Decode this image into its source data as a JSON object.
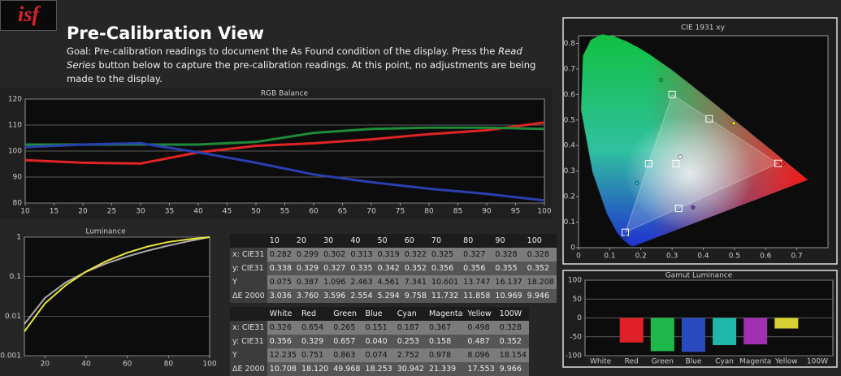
{
  "header": {
    "logo": "isf",
    "title": "Pre-Calibration View",
    "goal": [
      "Goal: Pre-calibration readings to document the As Found condition of the display. Press the ",
      "Read Series",
      " button below to capture the pre-calibration readings. At this point, no adjustments are being made to the display."
    ]
  },
  "chart_data": [
    {
      "type": "line",
      "title": "RGB Balance",
      "x": [
        10,
        20,
        30,
        40,
        50,
        60,
        70,
        80,
        90,
        100
      ],
      "xlim": [
        10,
        100
      ],
      "xticks": [
        10,
        15,
        20,
        25,
        30,
        35,
        40,
        45,
        50,
        55,
        60,
        65,
        70,
        75,
        80,
        85,
        90,
        95,
        100
      ],
      "ylim": [
        80,
        120
      ],
      "yticks": [
        80,
        90,
        100,
        110,
        120
      ],
      "grid": true,
      "log_y": false,
      "series": [
        {
          "color": "#e02424",
          "values": [
            96.5,
            95.5,
            95.2,
            99.5,
            102,
            103,
            104.5,
            106.5,
            108,
            111
          ]
        },
        {
          "color": "#1f8a3a",
          "values": [
            102.5,
            102.5,
            102.5,
            102.5,
            103.5,
            107,
            108.5,
            109,
            109,
            108.5
          ]
        },
        {
          "color": "#2a3fb0",
          "values": [
            101.5,
            102.5,
            103,
            99.5,
            95.5,
            91,
            88,
            85.5,
            83.5,
            81
          ]
        }
      ]
    },
    {
      "type": "line",
      "title": "Luminance",
      "x": [
        10,
        20,
        30,
        40,
        50,
        60,
        70,
        80,
        90,
        100
      ],
      "xlim": [
        10,
        100
      ],
      "xticks": [
        20,
        40,
        60,
        80,
        100
      ],
      "ylim": [
        0.001,
        1
      ],
      "yticks": [
        0.001,
        0.01,
        0.1,
        1
      ],
      "grid": true,
      "log_y": true,
      "series": [
        {
          "color": "#aaaaaa",
          "values": [
            0.0063,
            0.029,
            0.071,
            0.133,
            0.218,
            0.325,
            0.456,
            0.612,
            0.793,
            1
          ]
        },
        {
          "color": "#e8e83a",
          "values": [
            0.0041,
            0.021,
            0.06,
            0.135,
            0.25,
            0.403,
            0.58,
            0.755,
            0.886,
            1
          ]
        }
      ]
    },
    {
      "type": "scatter",
      "title": "CIE 1931 xy",
      "xlim": [
        0,
        0.8
      ],
      "xticks": [
        0,
        0.1,
        0.2,
        0.3,
        0.4,
        0.5,
        0.6,
        0.7
      ],
      "ylim": [
        0,
        0.83
      ],
      "yticks": [
        0,
        0.1,
        0.2,
        0.3,
        0.4,
        0.5,
        0.6,
        0.7,
        0.8
      ],
      "grid": false,
      "series": [
        {
          "marker": "square",
          "color": "#ffffff",
          "x": [
            0.64,
            0.3,
            0.15,
            0.3127,
            0.225,
            0.321,
            0.419
          ],
          "y": [
            0.33,
            0.6,
            0.06,
            0.329,
            0.329,
            0.154,
            0.505
          ]
        },
        {
          "marker": "circle",
          "colors": [
            "#ffffff",
            "#ff3030",
            "#20b040",
            "#2040c0",
            "#20c0c0",
            "#8030a0",
            "#e0e020"
          ],
          "x": [
            0.326,
            0.654,
            0.265,
            0.151,
            0.187,
            0.367,
            0.498
          ],
          "y": [
            0.356,
            0.329,
            0.657,
            0.04,
            0.253,
            0.158,
            0.487
          ]
        }
      ]
    },
    {
      "type": "bar",
      "title": "Gamut Luminance",
      "categories": [
        "White",
        "Red",
        "Green",
        "Blue",
        "Cyan",
        "Magenta",
        "Yellow",
        "100W"
      ],
      "values": [
        0,
        -65,
        -88,
        -90,
        -72,
        -70,
        -28,
        0
      ],
      "colors": [
        "#ffffff",
        "#e02028",
        "#1fb84a",
        "#2a4bc0",
        "#1fb8a8",
        "#a030b0",
        "#d8d030",
        "#ffffff"
      ],
      "ylim": [
        -100,
        100
      ],
      "yticks": [
        -100,
        -50,
        0,
        50,
        100
      ],
      "grid": true
    }
  ],
  "tables": [
    {
      "columns": [
        "10",
        "20",
        "30",
        "40",
        "50",
        "60",
        "70",
        "80",
        "90",
        "100"
      ],
      "rows": [
        {
          "label": "x: CIE31",
          "cells": [
            "0.282",
            "0.299",
            "0.302",
            "0.313",
            "0.319",
            "0.322",
            "0.325",
            "0.327",
            "0.328",
            "0.328"
          ]
        },
        {
          "label": "y: CIE31",
          "cells": [
            "0.338",
            "0.329",
            "0.327",
            "0.335",
            "0.342",
            "0.352",
            "0.356",
            "0.356",
            "0.355",
            "0.352"
          ]
        },
        {
          "label": "Y",
          "cells": [
            "0.075",
            "0.387",
            "1.096",
            "2.463",
            "4.561",
            "7.341",
            "10.601",
            "13.747",
            "16.137",
            "18.208"
          ]
        },
        {
          "label": "ΔE 2000",
          "cells": [
            "3.036",
            "3.760",
            "3.596",
            "2.554",
            "5.294",
            "9.758",
            "11.732",
            "11.858",
            "10.969",
            "9.946"
          ]
        }
      ]
    },
    {
      "columns": [
        "White",
        "Red",
        "Green",
        "Blue",
        "Cyan",
        "Magenta",
        "Yellow",
        "100W"
      ],
      "rows": [
        {
          "label": "x: CIE31",
          "cells": [
            "0.326",
            "0.654",
            "0.265",
            "0.151",
            "0.187",
            "0.367",
            "0.498",
            "0.328"
          ]
        },
        {
          "label": "y: CIE31",
          "cells": [
            "0.356",
            "0.329",
            "0.657",
            "0.040",
            "0.253",
            "0.158",
            "0.487",
            "0.352"
          ]
        },
        {
          "label": "Y",
          "cells": [
            "12.235",
            "0.751",
            "0.863",
            "0.074",
            "2.752",
            "0.978",
            "8.096",
            "18.154"
          ]
        },
        {
          "label": "ΔE 2000",
          "cells": [
            "10.708",
            "18.120",
            "49.968",
            "18.253",
            "30.942",
            "21.339",
            "17.553",
            "9.966"
          ]
        }
      ]
    }
  ]
}
